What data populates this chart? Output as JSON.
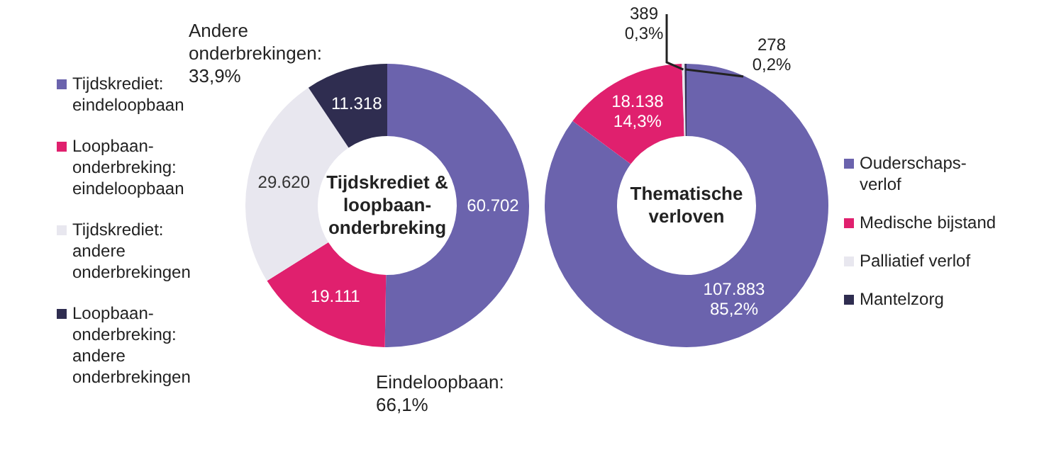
{
  "chart_data": [
    {
      "type": "donut",
      "title": "Tijdskrediet & loopbaan-onderbreking",
      "categories": [
        "Tijdskrediet: eindeloopbaan",
        "Loopbaan-onderbreking: eindeloopbaan",
        "Tijdskrediet: andere onderbrekingen",
        "Loopbaan-onderbreking: andere onderbrekingen"
      ],
      "values": [
        60702,
        19111,
        29620,
        11318
      ],
      "value_labels": [
        "60.702",
        "19.111",
        "29.620",
        "11.318"
      ],
      "colors": [
        "#6b63ad",
        "#e0206e",
        "#e8e7ef",
        "#2f2d50"
      ],
      "legend": "left",
      "annotations": [
        "Andere onderbrekingen: 33,9%",
        "Eindeloopbaan: 66,1%"
      ]
    },
    {
      "type": "donut",
      "title": "Thematische verloven",
      "categories": [
        "Ouderschaps-verlof",
        "Medische bijstand",
        "Palliatief verlof",
        "Mantelzorg"
      ],
      "values": [
        107883,
        18138,
        389,
        278
      ],
      "value_labels": [
        "107.883\n85,2%",
        "18.138\n14,3%",
        "389\n0,3%",
        "278\n0,2%"
      ],
      "colors": [
        "#6b63ad",
        "#e0206e",
        "#e8e7ef",
        "#2f2d50"
      ],
      "legend": "right"
    }
  ]
}
